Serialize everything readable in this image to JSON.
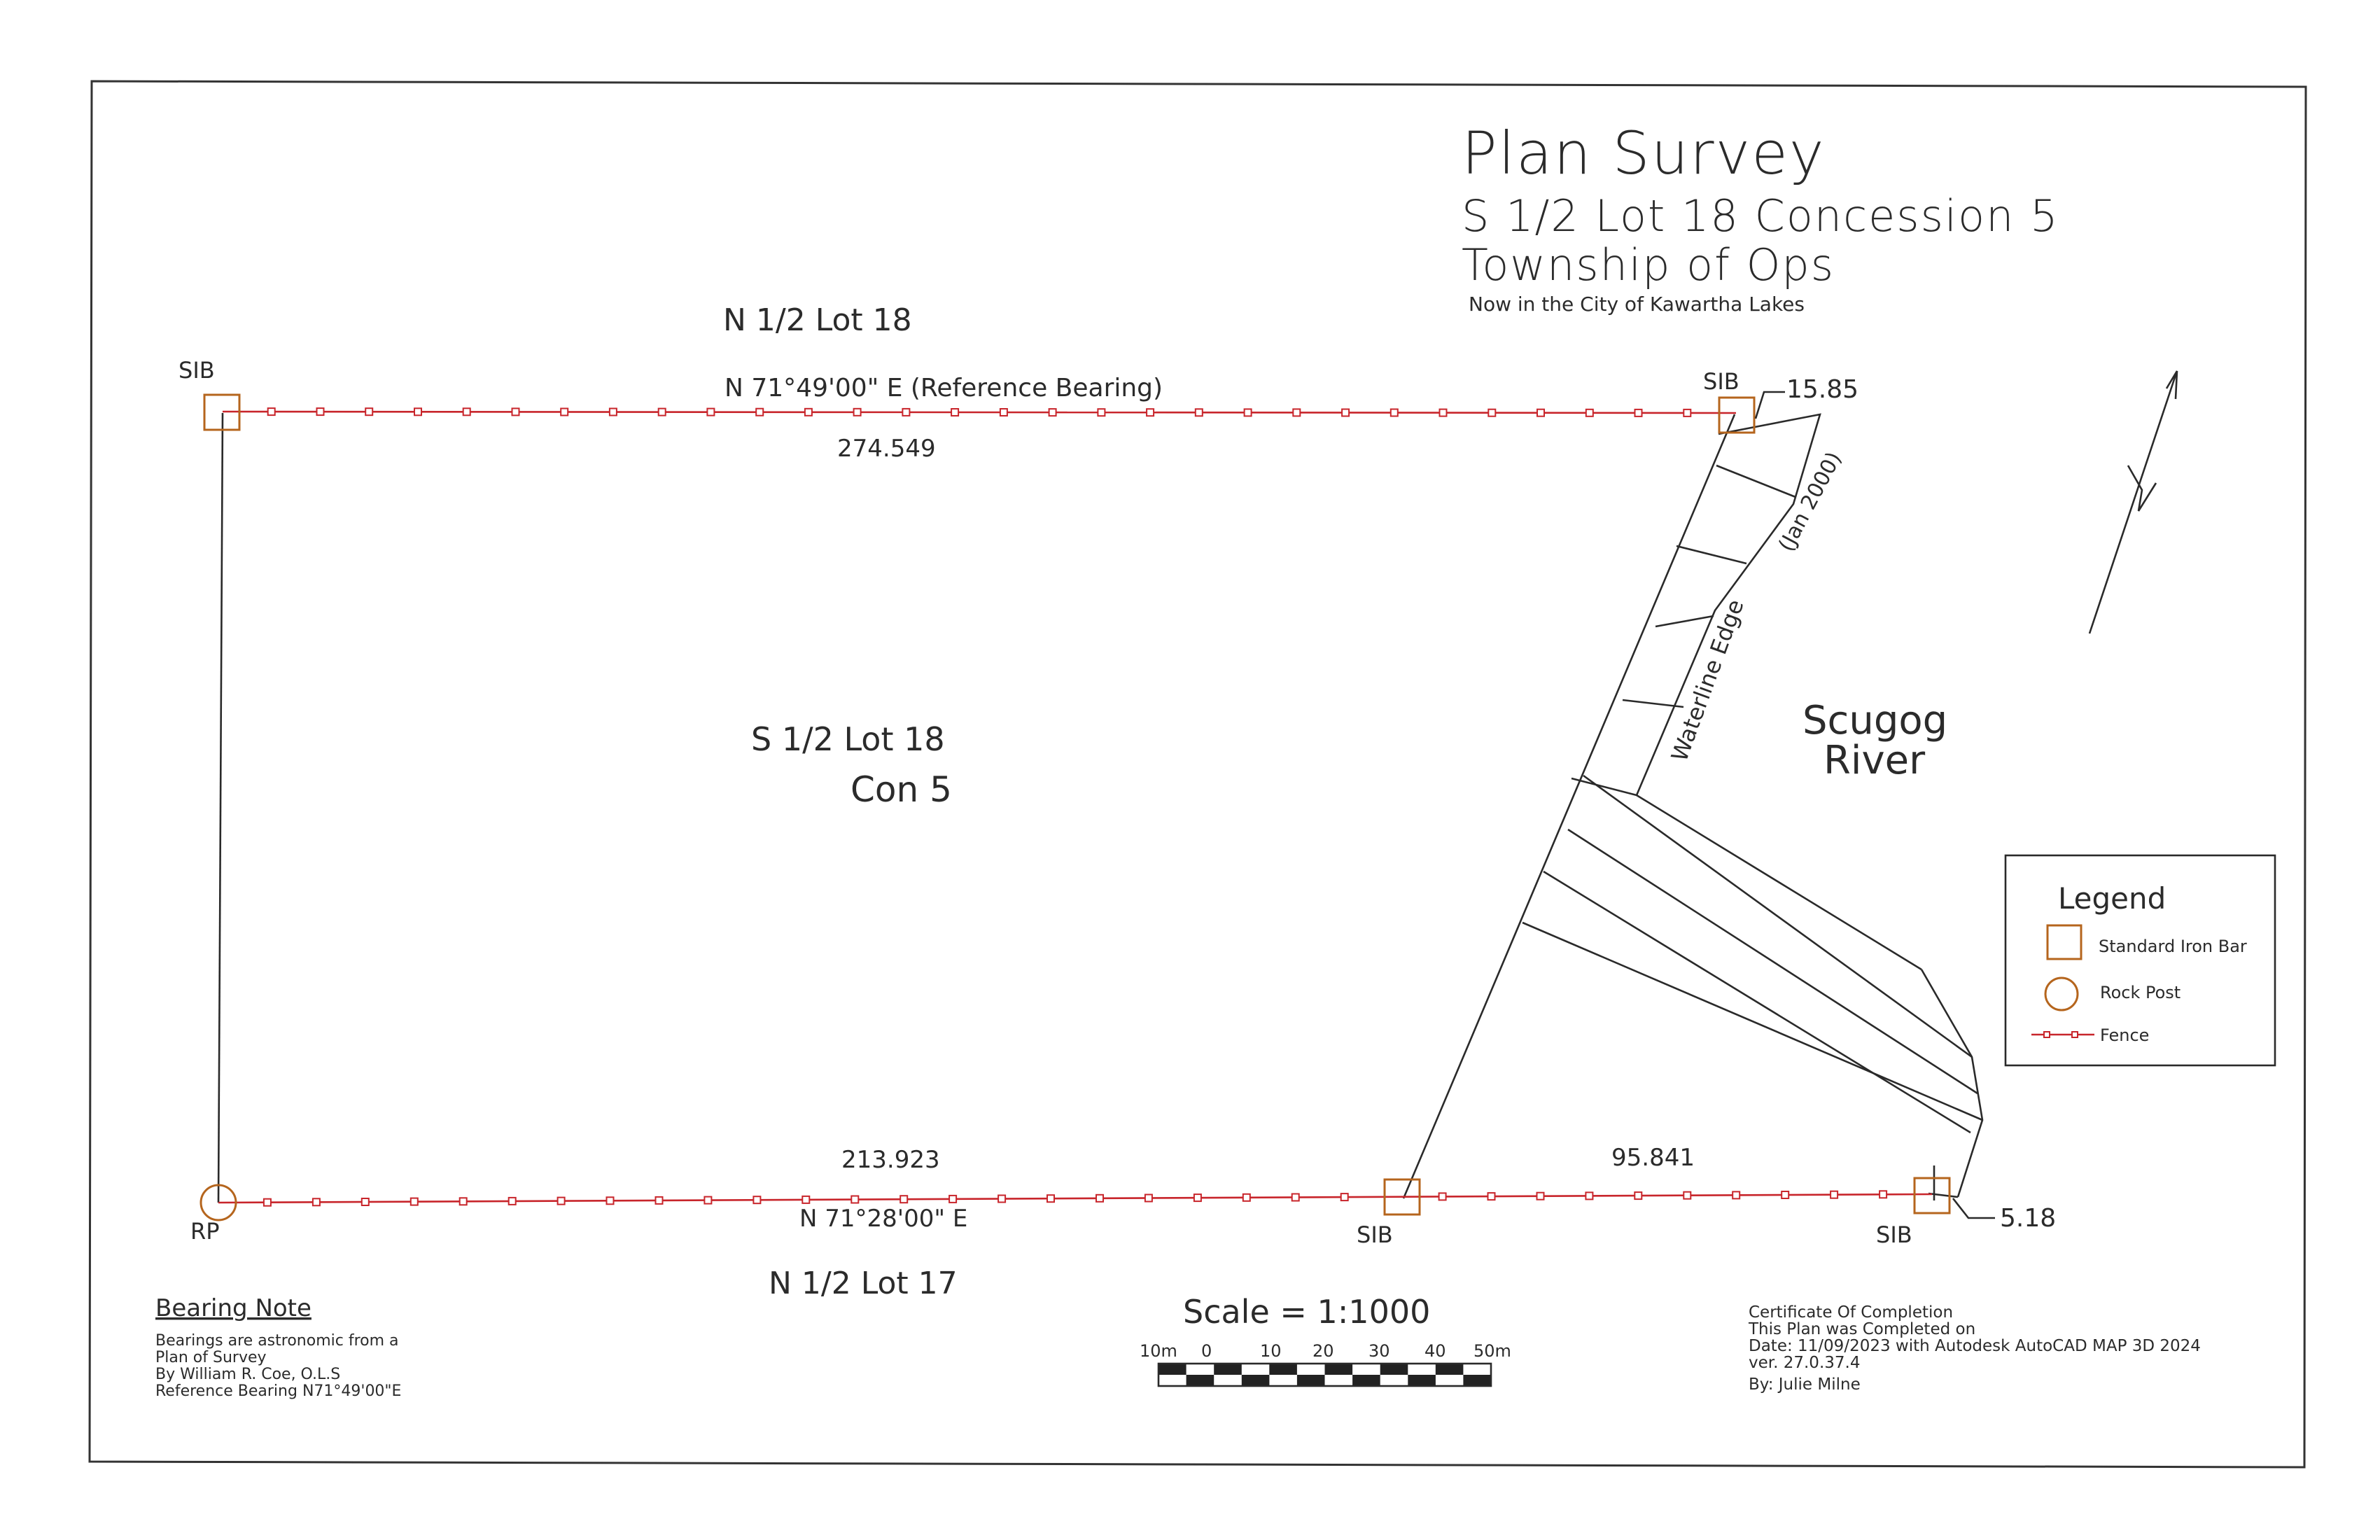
{
  "title": {
    "line1": "Plan  Survey",
    "line2": "S  1/2  Lot  18  Concession  5",
    "line3": "Township  of  Ops",
    "line4": "Now  in  the  City  of  Kawartha  Lakes"
  },
  "labels": {
    "north_lot": "N  1/2  Lot  18",
    "south_lot": "N  1/2  Lot  17",
    "parcel_line1": "S  1/2  Lot  18",
    "parcel_line2": "Con  5",
    "river_line1": "Scugog",
    "river_line2": "River",
    "waterline": "Waterline  Edge",
    "jan2000": "(Jan 2000)"
  },
  "dimensions": {
    "north_bearing": "N  71°49'00\"  E  (Reference  Bearing)",
    "north_distance": "274.549",
    "south_distance_west": "213.923",
    "south_bearing": "N  71°28'00\"  E",
    "south_distance_east": "95.841",
    "ne_offset": "15.85",
    "se_offset": "5.18"
  },
  "monuments": {
    "nw": "SIB",
    "ne": "SIB",
    "sw": "RP",
    "s_mid": "SIB",
    "se": "SIB"
  },
  "legend": {
    "title": "Legend",
    "items": [
      {
        "symbol": "standard-iron-bar",
        "label": "Standard  Iron  Bar",
        "color": "#b5651d"
      },
      {
        "symbol": "rock-post",
        "label": "Rock  Post",
        "color": "#b5651d"
      },
      {
        "symbol": "fence",
        "label": "Fence",
        "color": "#c8252b"
      }
    ]
  },
  "scale": {
    "title": "Scale  =  1:1000",
    "ticks": [
      "10m",
      "0",
      "10",
      "20",
      "30",
      "40",
      "50m"
    ]
  },
  "bearing_note": {
    "heading": "Bearing  Note",
    "lines": [
      "Bearings  are  astronomic  from  a",
      "Plan  of  Survey",
      "By  William  R.  Coe,  O.L.S",
      "Reference  Bearing  N71°49'00\"E"
    ]
  },
  "certificate": {
    "lines": [
      "Certificate  Of  Completion",
      "This  Plan  was  Completed  on",
      "Date:  11/09/2023  with  Autodesk  AutoCAD  MAP  3D  2024",
      "ver.  27.0.37.4",
      "By:  Julie  Milne"
    ]
  },
  "colors": {
    "fence": "#c8252b",
    "monument": "#b5651d",
    "linework": "#2a2a2a"
  },
  "icons": [
    "north-arrow-icon"
  ]
}
